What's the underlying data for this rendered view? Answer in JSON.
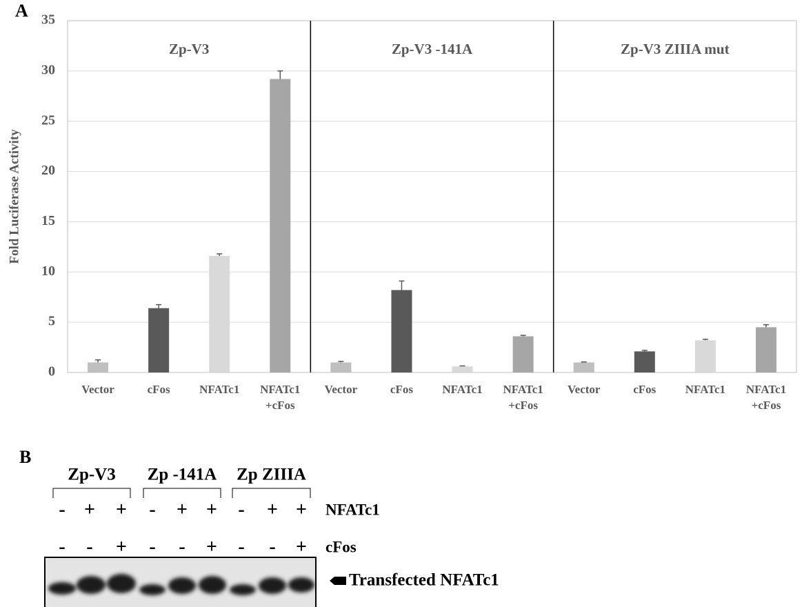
{
  "panel_labels": [
    "A",
    "B"
  ],
  "chart_data": {
    "type": "bar",
    "ylabel": "Fold Luciferase Activity",
    "groups": [
      "Zp-V3",
      "Zp-V3 -141A",
      "Zp-V3 ZIIIA mut"
    ],
    "categories": [
      "Vector",
      "cFos",
      "NFATc1",
      "NFATc1\n+cFos",
      "Vector",
      "cFos",
      "NFATc1",
      "NFATc1\n+cFos",
      "Vector",
      "cFos",
      "NFATc1",
      "NFATc1\n+cFos"
    ],
    "values": [
      1.0,
      6.4,
      11.6,
      29.2,
      1.0,
      8.2,
      0.6,
      3.6,
      1.0,
      2.1,
      3.2,
      4.5
    ],
    "errors": [
      0.25,
      0.35,
      0.2,
      0.8,
      0.1,
      0.9,
      0.05,
      0.1,
      0.05,
      0.1,
      0.1,
      0.25
    ],
    "colors": [
      "#bfbfbf",
      "#595959",
      "#d9d9d9",
      "#a6a6a6",
      "#bfbfbf",
      "#595959",
      "#d9d9d9",
      "#a6a6a6",
      "#bfbfbf",
      "#595959",
      "#d9d9d9",
      "#a6a6a6"
    ],
    "ylim": [
      0,
      35
    ],
    "yticks": [
      0,
      5,
      10,
      15,
      20,
      25,
      30,
      35
    ],
    "grid": true
  },
  "blot": {
    "groups": [
      "Zp-V3",
      "Zp -141A",
      "Zp ZIIIA"
    ],
    "rows": [
      {
        "label": "NFATc1",
        "signs": [
          "-",
          "+",
          "+",
          "-",
          "+",
          "+",
          "-",
          "+",
          "+"
        ]
      },
      {
        "label": "cFos",
        "signs": [
          "-",
          "-",
          "+",
          "-",
          "-",
          "+",
          "-",
          "-",
          "+"
        ]
      }
    ],
    "band_label": "Transfected NFATc1"
  }
}
